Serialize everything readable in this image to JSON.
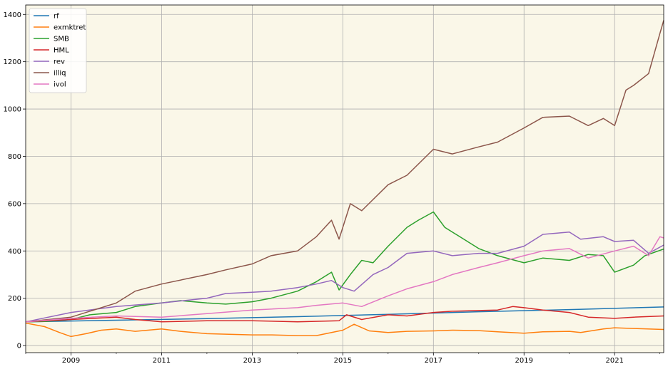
{
  "chart_data": {
    "type": "line",
    "title": "",
    "xlabel": "",
    "ylabel": "",
    "x_axis_type": "date",
    "x_range": [
      "2008-01",
      "2022-02"
    ],
    "ylim": [
      -30,
      1440
    ],
    "x_ticks": [
      {
        "label": "2009",
        "date": "2009-01"
      },
      {
        "label": "2011",
        "date": "2011-01"
      },
      {
        "label": "2013",
        "date": "2013-01"
      },
      {
        "label": "2015",
        "date": "2015-01"
      },
      {
        "label": "2017",
        "date": "2017-01"
      },
      {
        "label": "2019",
        "date": "2019-01"
      },
      {
        "label": "2021",
        "date": "2021-01"
      }
    ],
    "y_ticks": [
      0,
      200,
      400,
      600,
      800,
      1000,
      1200,
      1400
    ],
    "grid": true,
    "legend_position": "top-left",
    "background_color": "#faf7e8",
    "series": [
      {
        "name": "rf",
        "color": "#1f77b4",
        "points": [
          [
            "2008-01",
            100
          ],
          [
            "2010-01",
            107
          ],
          [
            "2012-01",
            114
          ],
          [
            "2014-01",
            122
          ],
          [
            "2016-01",
            132
          ],
          [
            "2018-01",
            143
          ],
          [
            "2020-01",
            152
          ],
          [
            "2022-02",
            163
          ]
        ]
      },
      {
        "name": "exmktret",
        "color": "#ff7f0e",
        "points": [
          [
            "2008-01",
            95
          ],
          [
            "2008-06",
            80
          ],
          [
            "2008-10",
            55
          ],
          [
            "2009-01",
            38
          ],
          [
            "2009-05",
            50
          ],
          [
            "2009-09",
            65
          ],
          [
            "2010-01",
            70
          ],
          [
            "2010-06",
            60
          ],
          [
            "2011-01",
            70
          ],
          [
            "2011-06",
            60
          ],
          [
            "2012-01",
            50
          ],
          [
            "2012-06",
            48
          ],
          [
            "2013-01",
            45
          ],
          [
            "2013-06",
            45
          ],
          [
            "2014-01",
            42
          ],
          [
            "2014-06",
            42
          ],
          [
            "2015-01",
            65
          ],
          [
            "2015-04",
            90
          ],
          [
            "2015-08",
            62
          ],
          [
            "2016-01",
            55
          ],
          [
            "2016-06",
            60
          ],
          [
            "2017-01",
            62
          ],
          [
            "2017-06",
            65
          ],
          [
            "2018-01",
            63
          ],
          [
            "2018-06",
            58
          ],
          [
            "2019-01",
            52
          ],
          [
            "2019-06",
            58
          ],
          [
            "2020-01",
            60
          ],
          [
            "2020-04",
            55
          ],
          [
            "2020-10",
            70
          ],
          [
            "2021-01",
            75
          ],
          [
            "2021-06",
            72
          ],
          [
            "2022-02",
            68
          ]
        ]
      },
      {
        "name": "SMB",
        "color": "#2ca02c",
        "points": [
          [
            "2008-01",
            100
          ],
          [
            "2008-06",
            102
          ],
          [
            "2009-01",
            110
          ],
          [
            "2009-06",
            130
          ],
          [
            "2010-01",
            140
          ],
          [
            "2010-06",
            165
          ],
          [
            "2011-01",
            180
          ],
          [
            "2011-06",
            190
          ],
          [
            "2012-01",
            180
          ],
          [
            "2012-06",
            175
          ],
          [
            "2013-01",
            185
          ],
          [
            "2013-06",
            200
          ],
          [
            "2014-01",
            230
          ],
          [
            "2014-06",
            270
          ],
          [
            "2014-10",
            310
          ],
          [
            "2014-12",
            235
          ],
          [
            "2015-03",
            300
          ],
          [
            "2015-06",
            360
          ],
          [
            "2015-09",
            350
          ],
          [
            "2016-01",
            420
          ],
          [
            "2016-06",
            500
          ],
          [
            "2016-09",
            530
          ],
          [
            "2017-01",
            565
          ],
          [
            "2017-04",
            500
          ],
          [
            "2017-08",
            460
          ],
          [
            "2018-01",
            410
          ],
          [
            "2018-06",
            380
          ],
          [
            "2019-01",
            350
          ],
          [
            "2019-06",
            370
          ],
          [
            "2020-01",
            360
          ],
          [
            "2020-06",
            385
          ],
          [
            "2020-10",
            380
          ],
          [
            "2021-01",
            310
          ],
          [
            "2021-06",
            340
          ],
          [
            "2021-09",
            380
          ],
          [
            "2022-02",
            408
          ]
        ]
      },
      {
        "name": "HML",
        "color": "#d62728",
        "points": [
          [
            "2008-01",
            100
          ],
          [
            "2009-01",
            110
          ],
          [
            "2010-01",
            120
          ],
          [
            "2010-06",
            110
          ],
          [
            "2011-01",
            100
          ],
          [
            "2012-01",
            105
          ],
          [
            "2013-01",
            105
          ],
          [
            "2014-01",
            100
          ],
          [
            "2014-12",
            105
          ],
          [
            "2015-02",
            130
          ],
          [
            "2015-06",
            110
          ],
          [
            "2016-01",
            130
          ],
          [
            "2016-06",
            125
          ],
          [
            "2017-01",
            140
          ],
          [
            "2017-06",
            145
          ],
          [
            "2018-01",
            148
          ],
          [
            "2018-06",
            150
          ],
          [
            "2018-10",
            165
          ],
          [
            "2019-01",
            160
          ],
          [
            "2019-06",
            150
          ],
          [
            "2020-01",
            140
          ],
          [
            "2020-06",
            120
          ],
          [
            "2021-01",
            115
          ],
          [
            "2021-06",
            120
          ],
          [
            "2022-02",
            125
          ]
        ]
      },
      {
        "name": "rev",
        "color": "#9467bd",
        "points": [
          [
            "2008-01",
            100
          ],
          [
            "2009-01",
            140
          ],
          [
            "2010-01",
            165
          ],
          [
            "2011-01",
            180
          ],
          [
            "2012-01",
            200
          ],
          [
            "2012-06",
            220
          ],
          [
            "2013-01",
            225
          ],
          [
            "2013-06",
            230
          ],
          [
            "2014-01",
            245
          ],
          [
            "2014-06",
            260
          ],
          [
            "2014-10",
            275
          ],
          [
            "2015-01",
            245
          ],
          [
            "2015-04",
            230
          ],
          [
            "2015-09",
            300
          ],
          [
            "2016-01",
            330
          ],
          [
            "2016-06",
            390
          ],
          [
            "2017-01",
            400
          ],
          [
            "2017-06",
            380
          ],
          [
            "2018-01",
            390
          ],
          [
            "2018-06",
            390
          ],
          [
            "2019-01",
            420
          ],
          [
            "2019-06",
            470
          ],
          [
            "2020-01",
            480
          ],
          [
            "2020-04",
            450
          ],
          [
            "2020-10",
            460
          ],
          [
            "2021-01",
            440
          ],
          [
            "2021-06",
            445
          ],
          [
            "2021-10",
            390
          ],
          [
            "2022-02",
            425
          ]
        ]
      },
      {
        "name": "illiq",
        "color": "#8c564b",
        "points": [
          [
            "2008-01",
            100
          ],
          [
            "2009-01",
            120
          ],
          [
            "2010-01",
            180
          ],
          [
            "2010-06",
            230
          ],
          [
            "2011-01",
            260
          ],
          [
            "2012-01",
            300
          ],
          [
            "2012-06",
            320
          ],
          [
            "2013-01",
            345
          ],
          [
            "2013-06",
            380
          ],
          [
            "2014-01",
            400
          ],
          [
            "2014-06",
            460
          ],
          [
            "2014-10",
            530
          ],
          [
            "2014-12",
            450
          ],
          [
            "2015-03",
            600
          ],
          [
            "2015-06",
            570
          ],
          [
            "2016-01",
            680
          ],
          [
            "2016-06",
            720
          ],
          [
            "2017-01",
            830
          ],
          [
            "2017-06",
            810
          ],
          [
            "2018-01",
            840
          ],
          [
            "2018-06",
            860
          ],
          [
            "2019-01",
            920
          ],
          [
            "2019-06",
            965
          ],
          [
            "2020-01",
            970
          ],
          [
            "2020-06",
            930
          ],
          [
            "2020-10",
            960
          ],
          [
            "2021-01",
            930
          ],
          [
            "2021-04",
            1080
          ],
          [
            "2021-06",
            1100
          ],
          [
            "2021-10",
            1150
          ],
          [
            "2022-01",
            1320
          ],
          [
            "2022-02",
            1375
          ]
        ]
      },
      {
        "name": "ivol",
        "color": "#e377c2",
        "points": [
          [
            "2008-01",
            100
          ],
          [
            "2009-01",
            115
          ],
          [
            "2010-01",
            125
          ],
          [
            "2011-01",
            120
          ],
          [
            "2012-01",
            135
          ],
          [
            "2013-01",
            150
          ],
          [
            "2014-01",
            160
          ],
          [
            "2014-06",
            170
          ],
          [
            "2015-01",
            180
          ],
          [
            "2015-06",
            165
          ],
          [
            "2016-01",
            210
          ],
          [
            "2016-06",
            240
          ],
          [
            "2017-01",
            270
          ],
          [
            "2017-06",
            300
          ],
          [
            "2018-01",
            330
          ],
          [
            "2018-06",
            350
          ],
          [
            "2019-01",
            380
          ],
          [
            "2019-06",
            400
          ],
          [
            "2020-01",
            410
          ],
          [
            "2020-06",
            370
          ],
          [
            "2021-01",
            400
          ],
          [
            "2021-06",
            420
          ],
          [
            "2021-10",
            380
          ],
          [
            "2022-01",
            460
          ],
          [
            "2022-02",
            455
          ]
        ]
      }
    ]
  }
}
